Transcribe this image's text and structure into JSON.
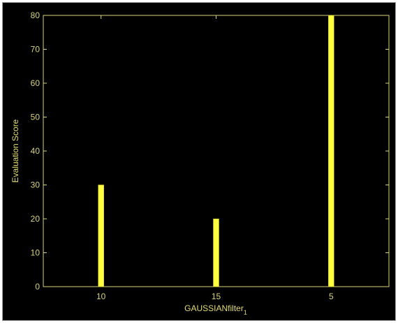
{
  "chart_data": {
    "type": "bar",
    "categories": [
      "10",
      "15",
      "5"
    ],
    "values": [
      30,
      20,
      80
    ],
    "title": "",
    "xlabel": "GAUSSIANfilter",
    "xlabel_subscript": "1",
    "ylabel": "Evaluation Score",
    "ylim": [
      0,
      80
    ],
    "yticks": [
      0,
      10,
      20,
      30,
      40,
      50,
      60,
      70,
      80
    ],
    "grid": false,
    "legend": "none",
    "colors": {
      "background": "#000000",
      "bar": "#ffff40",
      "axis": "#d8d47a",
      "text": "#d8d47a"
    }
  }
}
